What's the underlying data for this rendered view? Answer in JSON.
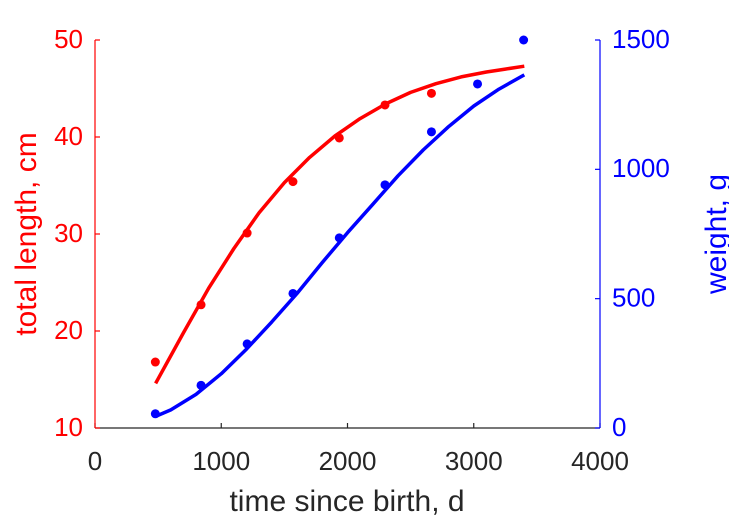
{
  "chart_data": {
    "type": "scatter",
    "xlabel": "time since birth, d",
    "xlim": [
      0,
      4000
    ],
    "xticks": [
      0,
      1000,
      2000,
      3000,
      4000
    ],
    "grid": false,
    "left_axis": {
      "label": "total length, cm",
      "color": "#ff0000",
      "ylim": [
        10,
        50
      ],
      "ticks": [
        10,
        20,
        30,
        40,
        50
      ]
    },
    "right_axis": {
      "label": "weight, g",
      "color": "#0000ff",
      "ylim": [
        0,
        1500
      ],
      "ticks": [
        0,
        500,
        1000,
        1500
      ]
    },
    "series": [
      {
        "axis": "left",
        "color": "#ff0000",
        "points": [
          [
            478,
            16.8
          ],
          [
            840,
            22.7
          ],
          [
            1205,
            30.1
          ],
          [
            1568,
            35.4
          ],
          [
            1935,
            39.9
          ],
          [
            2297,
            43.3
          ],
          [
            2665,
            44.5
          ]
        ],
        "fit": [
          [
            480,
            14.6
          ],
          [
            700,
            19.8
          ],
          [
            900,
            24.4
          ],
          [
            1100,
            28.5
          ],
          [
            1300,
            32.2
          ],
          [
            1500,
            35.3
          ],
          [
            1700,
            37.9
          ],
          [
            1900,
            40.1
          ],
          [
            2100,
            41.9
          ],
          [
            2300,
            43.4
          ],
          [
            2500,
            44.6
          ],
          [
            2700,
            45.5
          ],
          [
            2900,
            46.2
          ],
          [
            3100,
            46.7
          ],
          [
            3250,
            47.0
          ],
          [
            3400,
            47.3
          ]
        ]
      },
      {
        "axis": "right",
        "color": "#0000ff",
        "points": [
          [
            478,
            55
          ],
          [
            840,
            165
          ],
          [
            1205,
            325
          ],
          [
            1568,
            520
          ],
          [
            1935,
            735
          ],
          [
            2297,
            940
          ],
          [
            2665,
            1145
          ],
          [
            3030,
            1330
          ],
          [
            3395,
            1500
          ]
        ],
        "fit": [
          [
            480,
            45
          ],
          [
            600,
            70
          ],
          [
            800,
            130
          ],
          [
            1000,
            210
          ],
          [
            1200,
            305
          ],
          [
            1400,
            410
          ],
          [
            1600,
            520
          ],
          [
            1800,
            640
          ],
          [
            2000,
            755
          ],
          [
            2200,
            865
          ],
          [
            2400,
            975
          ],
          [
            2600,
            1075
          ],
          [
            2800,
            1165
          ],
          [
            3000,
            1245
          ],
          [
            3200,
            1310
          ],
          [
            3400,
            1365
          ]
        ]
      }
    ]
  }
}
